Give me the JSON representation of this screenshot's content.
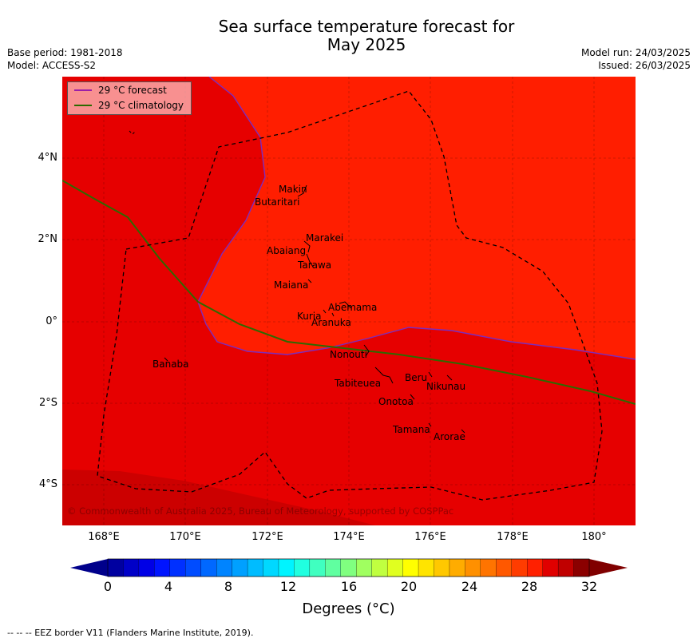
{
  "title": {
    "line1": "Sea surface temperature forecast for",
    "line2": "May 2025"
  },
  "meta_left": {
    "base_period": "Base period: 1981-2018",
    "model": "Model: ACCESS-S2"
  },
  "meta_right": {
    "model_run": "Model run: 24/03/2025",
    "issued": "Issued: 26/03/2025"
  },
  "legend": {
    "forecast": "29 °C  forecast",
    "climatology": "29 °C  climatology",
    "forecast_color": "#9b1fa8",
    "climatology_color": "#2d6a00"
  },
  "lat_labels": [
    "4°N",
    "2°N",
    "0°",
    "2°S",
    "4°S"
  ],
  "lon_labels": [
    "168°E",
    "170°E",
    "172°E",
    "174°E",
    "176°E",
    "178°E",
    "180°"
  ],
  "islands": {
    "makin": "Makin",
    "butaritari": "Butaritari",
    "marakei": "Marakei",
    "abaiang": "Abaiang",
    "tarawa": "Tarawa",
    "maiana": "Maiana",
    "abemama": "Abemama",
    "kuria": "Kuria",
    "aranuka": "Aranuka",
    "nonouti": "Nonouti",
    "banaba": "Banaba",
    "tabiteuea": "Tabiteuea",
    "beru": "Beru",
    "nikunau": "Nikunau",
    "onotoa": "Onotoa",
    "tamana": "Tamana",
    "arorae": "Arorae"
  },
  "copyright": "© Commonwealth of Australia 2025, Bureau of Meteorology, supported by COSPPac",
  "colorbar": {
    "ticks": [
      "0",
      "4",
      "8",
      "12",
      "16",
      "20",
      "24",
      "28",
      "32"
    ],
    "label": "Degrees (°C)",
    "colors": [
      "#0000a0",
      "#0000c8",
      "#0000e6",
      "#0014ff",
      "#0030ff",
      "#004cff",
      "#0068ff",
      "#0084ff",
      "#00a0ff",
      "#00bcff",
      "#00d8ff",
      "#00f4ff",
      "#20ffe0",
      "#40ffc0",
      "#60ffa0",
      "#80ff80",
      "#a0ff60",
      "#c0ff40",
      "#e0ff20",
      "#ffff00",
      "#ffe400",
      "#ffc800",
      "#ffac00",
      "#ff9000",
      "#ff7400",
      "#ff5800",
      "#ff3c00",
      "#ff2000",
      "#e00000",
      "#c00000",
      "#8b0000"
    ],
    "under_color": "#00008b",
    "over_color": "#800000"
  },
  "map_colors": {
    "warm": "#ff1e00",
    "mid": "#e60000",
    "cool": "#cc0000"
  },
  "footnote": "--  --  -- EEZ border V11 (Flanders Marine Institute, 2019)."
}
